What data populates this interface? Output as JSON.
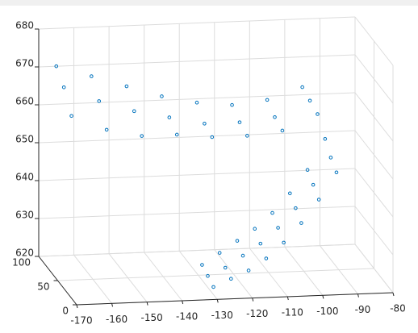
{
  "chart_data": {
    "type": "scatter3d",
    "color": "#0072bd",
    "grid": true,
    "xlim": [
      -170,
      -80
    ],
    "ylim": [
      0,
      100
    ],
    "zlim": [
      620,
      680
    ],
    "xticks": [
      -170,
      -160,
      -150,
      -140,
      -130,
      -120,
      -110,
      -100,
      -90,
      -80
    ],
    "yticks": [
      0,
      50,
      100
    ],
    "zticks": [
      620,
      630,
      640,
      650,
      660,
      670,
      680
    ],
    "x": [
      -165,
      -155,
      -145,
      -135,
      -125,
      -115,
      -105,
      -95,
      -165,
      -155,
      -145,
      -135,
      -125,
      -115,
      -105,
      -95,
      -165,
      -155,
      -145,
      -135,
      -125,
      -115,
      -105,
      -95,
      -130,
      -125,
      -120,
      -115,
      -110,
      -105,
      -100,
      -95,
      -130,
      -125,
      -120,
      -115,
      -110,
      -105,
      -100,
      -95,
      -130,
      -125,
      -120,
      -115,
      -110,
      -105,
      -100,
      -95
    ],
    "y": [
      100,
      100,
      100,
      100,
      100,
      100,
      100,
      100,
      80,
      80,
      80,
      80,
      80,
      80,
      80,
      80,
      60,
      60,
      60,
      60,
      60,
      60,
      60,
      60,
      10,
      10,
      10,
      10,
      10,
      10,
      10,
      10,
      25,
      25,
      25,
      25,
      25,
      25,
      25,
      25,
      40,
      40,
      40,
      40,
      40,
      40,
      40,
      40
    ],
    "z": [
      670,
      667,
      664,
      661,
      659,
      658,
      659,
      662,
      667,
      663,
      660,
      658,
      656,
      656,
      657,
      661,
      662,
      658,
      656,
      656,
      655,
      655,
      656,
      660,
      622,
      624,
      626,
      629,
      633,
      638,
      644,
      651,
      623,
      625,
      628,
      631,
      635,
      640,
      646,
      653,
      624,
      627,
      630,
      633,
      637,
      642,
      648,
      656
    ]
  }
}
